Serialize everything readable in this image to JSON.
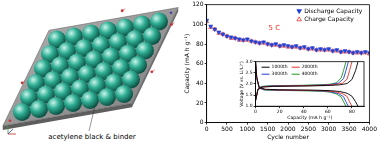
{
  "schematic": {
    "label": "acetylene black & binder"
  },
  "chart_data": [
    {
      "type": "scatter",
      "xlabel": "Cycle number",
      "ylabel": "Capacity (mA h g⁻¹)",
      "annotations": [
        "5 C"
      ],
      "x": [
        0,
        100,
        200,
        300,
        400,
        500,
        600,
        700,
        800,
        900,
        1000,
        1100,
        1200,
        1300,
        1400,
        1500,
        1600,
        1700,
        1800,
        1900,
        2000,
        2100,
        2200,
        2300,
        2400,
        2500,
        2600,
        2700,
        2800,
        2900,
        3000,
        3100,
        3200,
        3300,
        3400,
        3500,
        3600,
        3700,
        3800,
        3900,
        4000
      ],
      "series": [
        {
          "name": "Discharge Capacity",
          "color": "#1f3fd6",
          "marker": "triangle_down",
          "values": [
            104,
            98,
            95,
            92,
            90,
            88,
            87,
            86,
            85,
            84,
            85,
            83,
            82,
            81,
            82,
            80,
            79,
            80,
            78,
            79,
            78,
            77,
            78,
            76,
            77,
            75,
            76,
            74,
            75,
            74,
            75,
            73,
            74,
            72,
            73,
            72,
            71,
            72,
            71,
            72,
            71
          ]
        },
        {
          "name": "Charge Capacity",
          "color": "#e8302a",
          "marker": "triangle_open",
          "values": [
            103,
            97,
            95,
            91,
            90,
            88,
            86,
            86,
            84,
            84,
            84,
            83,
            82,
            81,
            81,
            80,
            79,
            79,
            78,
            78,
            77,
            77,
            77,
            76,
            76,
            75,
            75,
            74,
            74,
            74,
            74,
            73,
            73,
            72,
            72,
            72,
            71,
            71,
            71,
            71,
            70
          ]
        }
      ],
      "xlim": [
        0,
        4000
      ],
      "xticks": [
        0,
        500,
        1000,
        1500,
        2000,
        2500,
        3000,
        3500,
        4000
      ],
      "ylim": [
        0,
        120
      ],
      "yticks": [
        0,
        20,
        40,
        60,
        80,
        100,
        120
      ],
      "grid": false,
      "legend": "upper right"
    },
    {
      "type": "line",
      "xlabel": "Capacity (mA h g⁻¹)",
      "ylabel": "Voltage (V vs. Li/Li⁺)",
      "series": [
        {
          "name": "1000th",
          "color": "#000000",
          "x": [
            0,
            2,
            6,
            15,
            30,
            45,
            60,
            70,
            76,
            80,
            83,
            85,
            85,
            0,
            1,
            3,
            8,
            20,
            35,
            50,
            62,
            70,
            76,
            80,
            83,
            85
          ],
          "values": [
            1.25,
            1.75,
            1.86,
            1.89,
            1.9,
            1.91,
            1.93,
            1.96,
            2.02,
            2.2,
            2.6,
            3.0,
            null,
            3.0,
            2.3,
            1.85,
            1.76,
            1.74,
            1.73,
            1.72,
            1.7,
            1.66,
            1.58,
            1.45,
            1.2,
            1.0
          ]
        },
        {
          "name": "2000th",
          "color": "#e8302a",
          "x": [
            0,
            2,
            6,
            14,
            28,
            42,
            56,
            66,
            72,
            76,
            78,
            80,
            80,
            0,
            1,
            3,
            8,
            19,
            33,
            47,
            58,
            66,
            72,
            76,
            78,
            80
          ],
          "values": [
            1.25,
            1.76,
            1.87,
            1.9,
            1.91,
            1.92,
            1.94,
            1.97,
            2.03,
            2.22,
            2.6,
            3.0,
            null,
            3.0,
            2.28,
            1.84,
            1.75,
            1.73,
            1.72,
            1.71,
            1.69,
            1.65,
            1.57,
            1.44,
            1.2,
            1.0
          ]
        },
        {
          "name": "3000th",
          "color": "#1f3fd6",
          "x": [
            0,
            2,
            5,
            13,
            27,
            40,
            54,
            63,
            69,
            73,
            75,
            77,
            77,
            0,
            1,
            3,
            7,
            18,
            32,
            45,
            56,
            63,
            69,
            73,
            75,
            77
          ],
          "values": [
            1.25,
            1.77,
            1.88,
            1.91,
            1.92,
            1.93,
            1.95,
            1.98,
            2.04,
            2.24,
            2.6,
            3.0,
            null,
            3.0,
            2.26,
            1.83,
            1.74,
            1.72,
            1.71,
            1.7,
            1.68,
            1.64,
            1.56,
            1.43,
            1.2,
            1.0
          ]
        },
        {
          "name": "4000th",
          "color": "#1a9a1a",
          "x": [
            0,
            2,
            5,
            13,
            26,
            39,
            52,
            62,
            67,
            71,
            73,
            75,
            75,
            0,
            1,
            3,
            7,
            18,
            31,
            44,
            55,
            62,
            67,
            71,
            73,
            75
          ],
          "values": [
            1.25,
            1.78,
            1.89,
            1.92,
            1.93,
            1.94,
            1.96,
            1.99,
            2.05,
            2.26,
            2.6,
            3.0,
            null,
            3.0,
            2.24,
            1.82,
            1.73,
            1.71,
            1.7,
            1.69,
            1.67,
            1.63,
            1.55,
            1.42,
            1.2,
            1.0
          ]
        }
      ],
      "xlim": [
        0,
        90
      ],
      "xticks": [
        0,
        20,
        40,
        60,
        80
      ],
      "ylim": [
        1,
        3
      ],
      "yticks": [
        {
          "value": 1,
          "label": "1.0"
        },
        1.5,
        {
          "value": 2,
          "label": "2.0"
        },
        2.5,
        {
          "value": 3,
          "label": "3.0"
        }
      ],
      "grid": false,
      "legend": "upper left"
    }
  ]
}
